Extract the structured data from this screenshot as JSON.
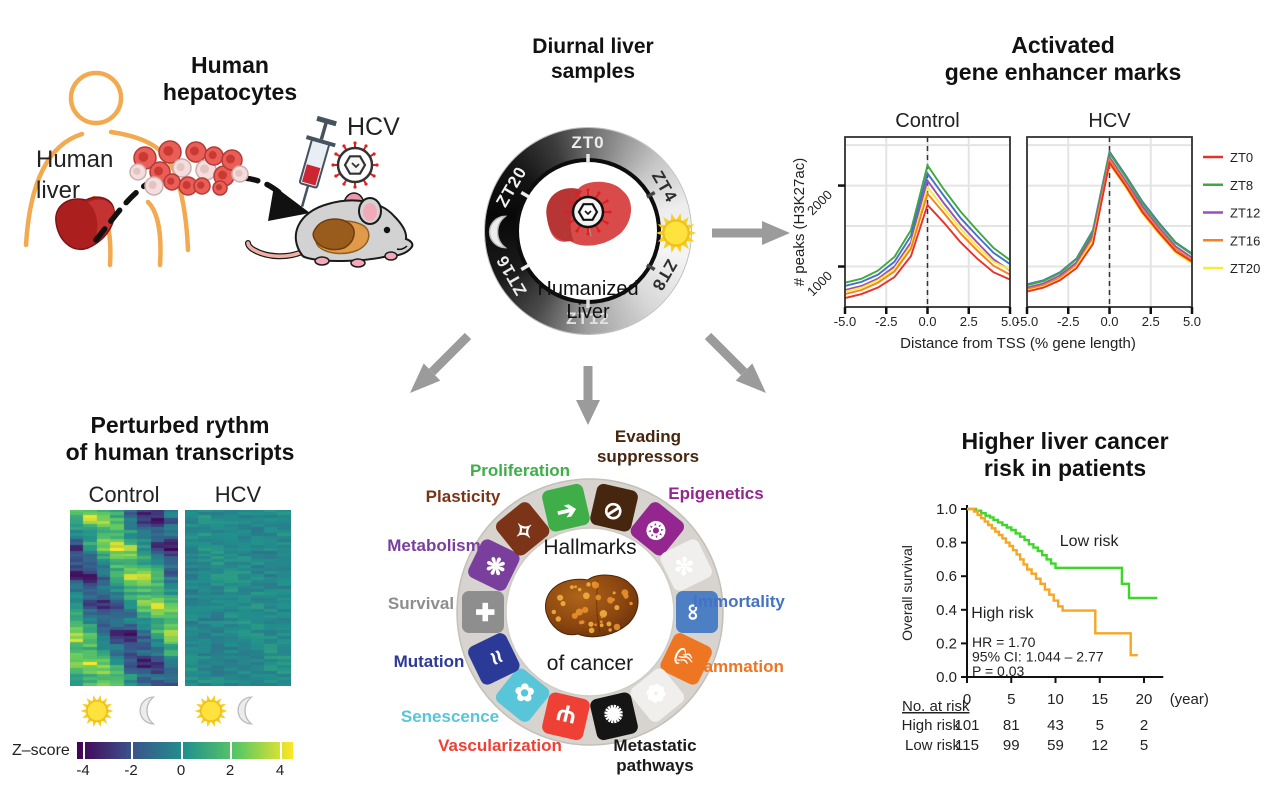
{
  "hepatocytes": {
    "title_line1": "Human",
    "title_line2": "hepatocytes",
    "liver_line1": "Human",
    "liver_line2": "liver",
    "hcv_label": "HCV"
  },
  "diurnal": {
    "title_line1": "Diurnal liver",
    "title_line2": "samples",
    "zt_labels": [
      "ZT0",
      "ZT4",
      "ZT8",
      "ZT12",
      "ZT16",
      "ZT20"
    ],
    "center_line1": "Humanized",
    "center_line2": "Liver"
  },
  "enhancer": {
    "title_line1": "Activated",
    "title_line2": "gene enhancer marks",
    "panel_titles": [
      "Control",
      "HCV"
    ],
    "ylabel": "# peaks (H3K27ac)",
    "xlabel": "Distance from TSS (% gene length)",
    "ytick_labels": [
      "1000",
      "2000"
    ],
    "xtick_labels": [
      "-5.0",
      "-2.5",
      "0.0",
      "2.5",
      "5.0"
    ],
    "legend": [
      {
        "label": "ZT0",
        "color": "#e8312a"
      },
      {
        "label": "ZT8",
        "color": "#3fa93f"
      },
      {
        "label": "ZT12",
        "color": "#9a4fc0"
      },
      {
        "label": "ZT16",
        "color": "#f58220"
      },
      {
        "label": "ZT20",
        "color": "#f7ec3a"
      }
    ],
    "chart_data": {
      "type": "line",
      "x": [
        -5,
        -4,
        -3,
        -2,
        -1,
        0,
        1,
        2,
        3,
        4,
        5
      ],
      "ylim": [
        500,
        2600
      ],
      "yticks": [
        1000,
        2000
      ],
      "xticks": [
        -5,
        -2.5,
        0,
        2.5,
        5
      ],
      "gridlines": true,
      "dashed_vline_at": 0,
      "control_series": [
        {
          "name": "ZT8",
          "color": "#3fa93f",
          "values": [
            800,
            850,
            950,
            1120,
            1450,
            2250,
            1950,
            1680,
            1450,
            1230,
            1080
          ]
        },
        {
          "name": "ZT4",
          "in_legend": false,
          "color": "#4472c4",
          "values": [
            760,
            810,
            900,
            1060,
            1380,
            2150,
            1870,
            1600,
            1380,
            1170,
            1030
          ]
        },
        {
          "name": "ZT12",
          "color": "#9a4fc0",
          "values": [
            710,
            760,
            850,
            1000,
            1300,
            2060,
            1780,
            1520,
            1300,
            1090,
            950
          ]
        },
        {
          "name": "ZT20",
          "color": "#f7ec3a",
          "values": [
            690,
            740,
            830,
            970,
            1260,
            1980,
            1720,
            1470,
            1250,
            1060,
            960
          ]
        },
        {
          "name": "ZT16",
          "color": "#f58220",
          "values": [
            660,
            710,
            800,
            940,
            1220,
            1900,
            1660,
            1410,
            1200,
            1010,
            900
          ]
        },
        {
          "name": "ZT0",
          "color": "#e8312a",
          "values": [
            610,
            660,
            740,
            870,
            1130,
            1760,
            1540,
            1300,
            1100,
            930,
            840
          ]
        }
      ],
      "hcv_series": [
        {
          "name": "ZT4",
          "in_legend": false,
          "color": "#4472c4",
          "values": [
            780,
            830,
            930,
            1100,
            1450,
            2420,
            2120,
            1800,
            1540,
            1300,
            1160
          ]
        },
        {
          "name": "ZT8",
          "color": "#3fa93f",
          "values": [
            770,
            820,
            920,
            1090,
            1430,
            2400,
            2100,
            1780,
            1520,
            1290,
            1150
          ]
        },
        {
          "name": "ZT12",
          "color": "#9a4fc0",
          "values": [
            740,
            790,
            890,
            1050,
            1390,
            2350,
            2050,
            1740,
            1480,
            1250,
            1110
          ]
        },
        {
          "name": "ZT16",
          "color": "#f58220",
          "values": [
            720,
            770,
            860,
            1020,
            1350,
            2320,
            2020,
            1700,
            1450,
            1220,
            1080
          ]
        },
        {
          "name": "ZT20",
          "color": "#f7ec3a",
          "values": [
            700,
            750,
            840,
            1000,
            1320,
            2270,
            1970,
            1650,
            1400,
            1170,
            1040
          ]
        },
        {
          "name": "ZT0",
          "color": "#e8312a",
          "values": [
            690,
            740,
            830,
            980,
            1280,
            2280,
            1990,
            1670,
            1420,
            1190,
            1060
          ]
        }
      ]
    }
  },
  "transcripts": {
    "title_line1": "Perturbed rythm",
    "title_line2": "of human transcripts",
    "panel_titles": [
      "Control",
      "HCV"
    ],
    "zscore_label": "Z–score",
    "colorbar_ticks": [
      "-4",
      "-2",
      "0",
      "2",
      "4"
    ],
    "chart_data": {
      "type": "heatmap",
      "description": "Rhythmic transcript z-scores: Control shows phase-shifted diagonal banding, HCV is dampened/flattened",
      "columns_per_panel": 8,
      "rows": 60,
      "colormap": "viridis",
      "colormap_stops": [
        "#440154",
        "#3b528b",
        "#21918c",
        "#5ec962",
        "#fde725"
      ],
      "zlim": [
        -4,
        4
      ],
      "panels": [
        {
          "name": "Control",
          "pattern": "rhythmic",
          "seed": 7
        },
        {
          "name": "HCV",
          "pattern": "dampened",
          "seed": 13
        }
      ]
    }
  },
  "hallmarks": {
    "center_line1": "Hallmarks",
    "center_line2": "of cancer",
    "labels": [
      {
        "lines": [
          "Proliferation"
        ],
        "color": "#3fae49"
      },
      {
        "lines": [
          "Evading",
          "suppressors"
        ],
        "color": "#47260f"
      },
      {
        "lines": [
          "Epigenetics"
        ],
        "color": "#93268f"
      },
      {
        "lines": [
          "Immortality"
        ],
        "color": "#4472c4"
      },
      {
        "lines": [
          "Inflammation"
        ],
        "color": "#ee7623"
      },
      {
        "lines": [
          "Metastatic",
          "pathways"
        ],
        "color": "#1a1a1a"
      },
      {
        "lines": [
          "Vascularization"
        ],
        "color": "#ee4035"
      },
      {
        "lines": [
          "Senescence"
        ],
        "color": "#59c5d8"
      },
      {
        "lines": [
          "Mutation"
        ],
        "color": "#2c3a97"
      },
      {
        "lines": [
          "Survival"
        ],
        "color": "#8e8e8e"
      },
      {
        "lines": [
          "Metabolism"
        ],
        "color": "#7a3f9d"
      },
      {
        "lines": [
          "Plasticity"
        ],
        "color": "#7c3418"
      }
    ],
    "tiles": [
      {
        "angle": 13,
        "color": "#47260f",
        "icon": "no-entry-icon",
        "char": "⊘"
      },
      {
        "angle": 39,
        "color": "#93268f",
        "icon": "chromatin-icon",
        "char": "❂"
      },
      {
        "angle": 64,
        "color": "#f0efed",
        "icon": "cell-cluster-icon",
        "char": "✼"
      },
      {
        "angle": 90,
        "color": "#4d7fc4",
        "icon": "infinity-icon",
        "char": "∞"
      },
      {
        "angle": 116,
        "color": "#ee7623",
        "icon": "flame-icon",
        "char": "♨"
      },
      {
        "angle": 141,
        "color": "#f0efed",
        "icon": "microbe-icon",
        "char": "❁"
      },
      {
        "angle": 167,
        "color": "#151515",
        "icon": "metastasis-icon",
        "char": "✺"
      },
      {
        "angle": 193,
        "color": "#ee4035",
        "icon": "vessel-icon",
        "char": "Ψ"
      },
      {
        "angle": 219,
        "color": "#59c5d8",
        "icon": "leaf-icon",
        "char": "✿"
      },
      {
        "angle": 244,
        "color": "#2c3a97",
        "icon": "dna-icon",
        "char": "≈"
      },
      {
        "angle": 270,
        "color": "#8e8e8e",
        "icon": "cross-icon",
        "char": "✚"
      },
      {
        "angle": 296,
        "color": "#7a3f9d",
        "icon": "atom-icon",
        "char": "❋"
      },
      {
        "angle": 321,
        "color": "#7c3418",
        "icon": "key-icon",
        "char": "✧"
      },
      {
        "angle": 347,
        "color": "#3fae49",
        "icon": "arrow-icon",
        "char": "➔"
      }
    ]
  },
  "survival": {
    "title_line1": "Higher liver cancer",
    "title_line2": "risk in patients",
    "ylabel": "Overall survival",
    "ytick_labels": [
      "1.0",
      "0.8",
      "0.6",
      "0.4",
      "0.2",
      "0.0"
    ],
    "xtick_labels": [
      "0",
      "5",
      "10",
      "15",
      "20"
    ],
    "x_unit": "(year)",
    "stats_lines": [
      "HR = 1.70",
      "95% CI: 1.044 – 2.77",
      "P = 0.03"
    ],
    "risk_table": {
      "header": "No. at risk",
      "rows": [
        {
          "label": "High risk",
          "values": [
            "101",
            "81",
            "43",
            "5",
            "2"
          ]
        },
        {
          "label": "Low risk",
          "values": [
            "115",
            "99",
            "59",
            "12",
            "5"
          ]
        }
      ]
    },
    "chart_data": {
      "type": "line",
      "subtype": "kaplan-meier",
      "xlim": [
        0,
        21.5
      ],
      "ylim": [
        0,
        1
      ],
      "series": [
        {
          "name": "Low risk",
          "color": "#3fd62c",
          "label_pos": [
            13.8,
            0.78
          ],
          "steps": [
            [
              0,
              1
            ],
            [
              1,
              1
            ],
            [
              1,
              0.99
            ],
            [
              1.6,
              0.99
            ],
            [
              1.6,
              0.975
            ],
            [
              2.1,
              0.975
            ],
            [
              2.1,
              0.96
            ],
            [
              2.6,
              0.96
            ],
            [
              2.6,
              0.95
            ],
            [
              3,
              0.95
            ],
            [
              3,
              0.935
            ],
            [
              3.5,
              0.935
            ],
            [
              3.5,
              0.92
            ],
            [
              4,
              0.92
            ],
            [
              4,
              0.905
            ],
            [
              4.5,
              0.905
            ],
            [
              4.5,
              0.89
            ],
            [
              5,
              0.89
            ],
            [
              5,
              0.875
            ],
            [
              5.5,
              0.875
            ],
            [
              5.5,
              0.855
            ],
            [
              6,
              0.855
            ],
            [
              6,
              0.835
            ],
            [
              6.5,
              0.835
            ],
            [
              6.5,
              0.815
            ],
            [
              7,
              0.815
            ],
            [
              7,
              0.79
            ],
            [
              7.5,
              0.79
            ],
            [
              7.5,
              0.77
            ],
            [
              8,
              0.77
            ],
            [
              8,
              0.75
            ],
            [
              8.5,
              0.75
            ],
            [
              8.5,
              0.725
            ],
            [
              9,
              0.725
            ],
            [
              9,
              0.7
            ],
            [
              9.5,
              0.7
            ],
            [
              9.5,
              0.675
            ],
            [
              10,
              0.675
            ],
            [
              10,
              0.65
            ],
            [
              17.5,
              0.65
            ],
            [
              17.5,
              0.555
            ],
            [
              18.3,
              0.555
            ],
            [
              18.3,
              0.47
            ],
            [
              21.5,
              0.47
            ]
          ]
        },
        {
          "name": "High risk",
          "color": "#f5a623",
          "label_pos": [
            4,
            0.35
          ],
          "steps": [
            [
              0,
              1
            ],
            [
              0.8,
              1
            ],
            [
              0.8,
              0.985
            ],
            [
              1.2,
              0.985
            ],
            [
              1.2,
              0.965
            ],
            [
              1.6,
              0.965
            ],
            [
              1.6,
              0.945
            ],
            [
              2,
              0.945
            ],
            [
              2,
              0.925
            ],
            [
              2.4,
              0.925
            ],
            [
              2.4,
              0.905
            ],
            [
              2.8,
              0.905
            ],
            [
              2.8,
              0.885
            ],
            [
              3.2,
              0.885
            ],
            [
              3.2,
              0.865
            ],
            [
              3.6,
              0.865
            ],
            [
              3.6,
              0.845
            ],
            [
              4,
              0.845
            ],
            [
              4,
              0.825
            ],
            [
              4.4,
              0.825
            ],
            [
              4.4,
              0.8
            ],
            [
              4.8,
              0.8
            ],
            [
              4.8,
              0.78
            ],
            [
              5.2,
              0.78
            ],
            [
              5.2,
              0.755
            ],
            [
              5.6,
              0.755
            ],
            [
              5.6,
              0.73
            ],
            [
              6,
              0.73
            ],
            [
              6,
              0.7
            ],
            [
              6.4,
              0.7
            ],
            [
              6.4,
              0.67
            ],
            [
              6.8,
              0.67
            ],
            [
              6.8,
              0.64
            ],
            [
              7.3,
              0.64
            ],
            [
              7.3,
              0.615
            ],
            [
              7.8,
              0.615
            ],
            [
              7.8,
              0.585
            ],
            [
              8.3,
              0.585
            ],
            [
              8.3,
              0.555
            ],
            [
              8.8,
              0.555
            ],
            [
              8.8,
              0.52
            ],
            [
              9.3,
              0.52
            ],
            [
              9.3,
              0.49
            ],
            [
              9.8,
              0.49
            ],
            [
              9.8,
              0.455
            ],
            [
              10.3,
              0.455
            ],
            [
              10.3,
              0.42
            ],
            [
              10.8,
              0.42
            ],
            [
              10.8,
              0.395
            ],
            [
              14.5,
              0.395
            ],
            [
              14.5,
              0.26
            ],
            [
              18.5,
              0.26
            ],
            [
              18.5,
              0.13
            ],
            [
              19.3,
              0.13
            ]
          ]
        }
      ]
    }
  }
}
